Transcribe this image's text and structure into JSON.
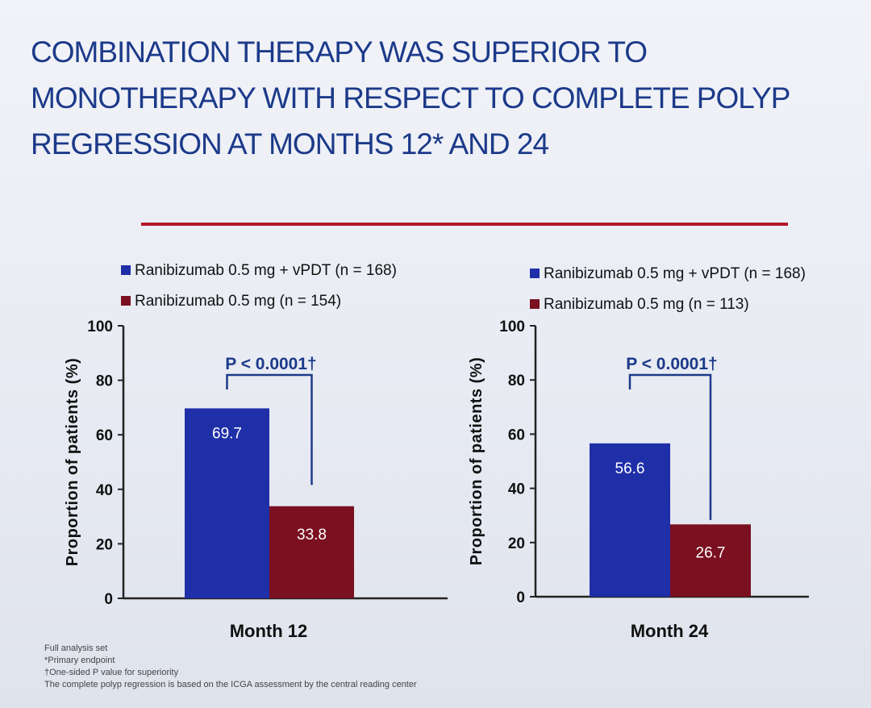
{
  "title_lines": [
    "COMBINATION THERAPY WAS SUPERIOR TO",
    "MONOTHERAPY WITH RESPECT TO COMPLETE POLYP",
    "REGRESSION AT MONTHS 12* AND 24"
  ],
  "colors": {
    "title": "#1c3a8a",
    "rule": "#b3162b",
    "series_combo": "#1f2fa8",
    "series_mono": "#7a1020",
    "bracket": "#1c3a8a"
  },
  "footnotes": [
    "Full analysis set",
    "*Primary endpoint",
    "†One-sided P value for superiority",
    "The complete polyp regression is based on the ICGA assessment by the central reading center"
  ],
  "chart_data": [
    {
      "type": "bar",
      "categories": [
        "Month 12"
      ],
      "series": [
        {
          "name": "Ranibizumab 0.5 mg + vPDT (n = 168)",
          "values": [
            69.7
          ]
        },
        {
          "name": "Ranibizumab 0.5 mg (n = 154)",
          "values": [
            33.8
          ]
        }
      ],
      "ylabel": "Proportion of patients (%)",
      "ylim": [
        0,
        100
      ],
      "yticks": [
        "0",
        "20",
        "40",
        "60",
        "80",
        "100"
      ],
      "data_labels": [
        "69.7",
        "33.8"
      ],
      "annotation": "P < 0.0001†",
      "legend_position": "top"
    },
    {
      "type": "bar",
      "categories": [
        "Month 24"
      ],
      "series": [
        {
          "name": "Ranibizumab 0.5 mg + vPDT (n = 168)",
          "values": [
            56.6
          ]
        },
        {
          "name": "Ranibizumab 0.5 mg (n = 113)",
          "values": [
            26.7
          ]
        }
      ],
      "ylabel": "Proportion of patients (%)",
      "ylim": [
        0,
        100
      ],
      "yticks": [
        "0",
        "20",
        "40",
        "60",
        "80",
        "100"
      ],
      "data_labels": [
        "56.6",
        "26.7"
      ],
      "annotation": "P < 0.0001†",
      "legend_position": "top"
    }
  ]
}
